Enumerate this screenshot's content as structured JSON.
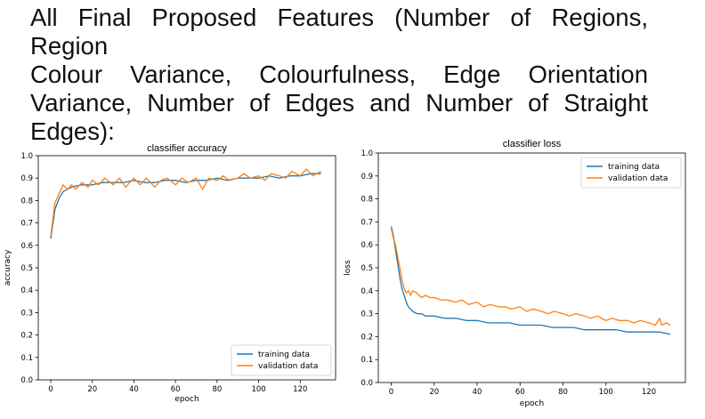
{
  "heading": {
    "line1": "All Final Proposed Features (Number of Regions, Region",
    "line2": "Colour Variance, Colourfulness, Edge Orientation",
    "line3": "Variance, Number of Edges and Number of Straight",
    "line4": "Edges):"
  },
  "colors": {
    "training": "#1f77b4",
    "validation": "#ff7f0e"
  },
  "chart_data": [
    {
      "type": "line",
      "title": "classifier accuracy",
      "xlabel": "epoch",
      "ylabel": "accuracy",
      "xlim": [
        -6,
        137
      ],
      "ylim": [
        0,
        1
      ],
      "xticks": [
        0,
        20,
        40,
        60,
        80,
        100,
        120
      ],
      "xtick_labels": [
        "0",
        "20",
        "40",
        "60",
        "80",
        "100",
        "120"
      ],
      "yticks": [
        0,
        0.1,
        0.2,
        0.3,
        0.4,
        0.5,
        0.6,
        0.7,
        0.8,
        0.9,
        1.0
      ],
      "ytick_labels": [
        "0.0",
        "0.1",
        "0.2",
        "0.3",
        "0.4",
        "0.5",
        "0.6",
        "0.7",
        "0.8",
        "0.9",
        "1.0"
      ],
      "legend_position": "bottom-right",
      "series": [
        {
          "name": "training data",
          "x": [
            0,
            2,
            4,
            6,
            8,
            10,
            15,
            20,
            25,
            30,
            35,
            40,
            45,
            50,
            55,
            60,
            65,
            70,
            75,
            80,
            85,
            90,
            95,
            100,
            105,
            110,
            115,
            120,
            125,
            130
          ],
          "values": [
            0.63,
            0.76,
            0.81,
            0.84,
            0.85,
            0.86,
            0.87,
            0.87,
            0.88,
            0.88,
            0.88,
            0.89,
            0.88,
            0.88,
            0.89,
            0.89,
            0.88,
            0.89,
            0.89,
            0.9,
            0.89,
            0.9,
            0.9,
            0.9,
            0.91,
            0.9,
            0.91,
            0.91,
            0.92,
            0.92
          ]
        },
        {
          "name": "validation data",
          "x": [
            0,
            2,
            4,
            6,
            8,
            10,
            12,
            15,
            18,
            20,
            23,
            26,
            30,
            33,
            36,
            40,
            43,
            46,
            50,
            53,
            56,
            60,
            63,
            66,
            70,
            73,
            76,
            80,
            83,
            86,
            90,
            93,
            96,
            100,
            103,
            106,
            110,
            113,
            116,
            120,
            123,
            126,
            130
          ],
          "values": [
            0.64,
            0.79,
            0.83,
            0.87,
            0.85,
            0.87,
            0.85,
            0.88,
            0.86,
            0.89,
            0.87,
            0.9,
            0.87,
            0.9,
            0.86,
            0.9,
            0.87,
            0.9,
            0.86,
            0.89,
            0.9,
            0.87,
            0.9,
            0.88,
            0.9,
            0.85,
            0.9,
            0.89,
            0.91,
            0.89,
            0.9,
            0.92,
            0.9,
            0.91,
            0.89,
            0.92,
            0.91,
            0.9,
            0.93,
            0.91,
            0.94,
            0.91,
            0.93
          ]
        }
      ]
    },
    {
      "type": "line",
      "title": "classifier loss",
      "xlabel": "epoch",
      "ylabel": "loss",
      "xlim": [
        -6,
        137
      ],
      "ylim": [
        0,
        1
      ],
      "xticks": [
        0,
        20,
        40,
        60,
        80,
        100,
        120
      ],
      "xtick_labels": [
        "0",
        "20",
        "40",
        "60",
        "80",
        "100",
        "120"
      ],
      "yticks": [
        0,
        0.1,
        0.2,
        0.3,
        0.4,
        0.5,
        0.6,
        0.7,
        0.8,
        0.9,
        1.0
      ],
      "ytick_labels": [
        "0.0",
        "0.1",
        "0.2",
        "0.3",
        "0.4",
        "0.5",
        "0.6",
        "0.7",
        "0.8",
        "0.9",
        "1.0"
      ],
      "legend_position": "top-right",
      "series": [
        {
          "name": "training data",
          "x": [
            0,
            1,
            2,
            3,
            4,
            5,
            6,
            7,
            8,
            9,
            10,
            12,
            14,
            16,
            18,
            20,
            25,
            30,
            35,
            40,
            45,
            50,
            55,
            60,
            65,
            70,
            75,
            80,
            85,
            90,
            95,
            100,
            105,
            110,
            115,
            120,
            125,
            130
          ],
          "values": [
            0.68,
            0.64,
            0.58,
            0.52,
            0.46,
            0.41,
            0.38,
            0.35,
            0.33,
            0.32,
            0.31,
            0.3,
            0.3,
            0.29,
            0.29,
            0.29,
            0.28,
            0.28,
            0.27,
            0.27,
            0.26,
            0.26,
            0.26,
            0.25,
            0.25,
            0.25,
            0.24,
            0.24,
            0.24,
            0.23,
            0.23,
            0.23,
            0.23,
            0.22,
            0.22,
            0.22,
            0.22,
            0.21
          ]
        },
        {
          "name": "validation data",
          "x": [
            0,
            1,
            2,
            3,
            4,
            5,
            6,
            7,
            8,
            9,
            10,
            12,
            14,
            16,
            18,
            20,
            23,
            26,
            30,
            33,
            36,
            40,
            43,
            46,
            50,
            53,
            56,
            60,
            63,
            66,
            70,
            73,
            76,
            80,
            83,
            86,
            90,
            93,
            96,
            100,
            103,
            106,
            110,
            113,
            116,
            120,
            123,
            125,
            126,
            128,
            130
          ],
          "values": [
            0.67,
            0.63,
            0.6,
            0.55,
            0.5,
            0.45,
            0.41,
            0.39,
            0.4,
            0.38,
            0.4,
            0.39,
            0.37,
            0.38,
            0.37,
            0.37,
            0.36,
            0.36,
            0.35,
            0.36,
            0.34,
            0.35,
            0.33,
            0.34,
            0.33,
            0.33,
            0.32,
            0.33,
            0.31,
            0.32,
            0.31,
            0.3,
            0.31,
            0.3,
            0.29,
            0.3,
            0.29,
            0.28,
            0.29,
            0.27,
            0.28,
            0.27,
            0.27,
            0.26,
            0.27,
            0.26,
            0.25,
            0.28,
            0.25,
            0.26,
            0.25
          ]
        }
      ]
    }
  ]
}
